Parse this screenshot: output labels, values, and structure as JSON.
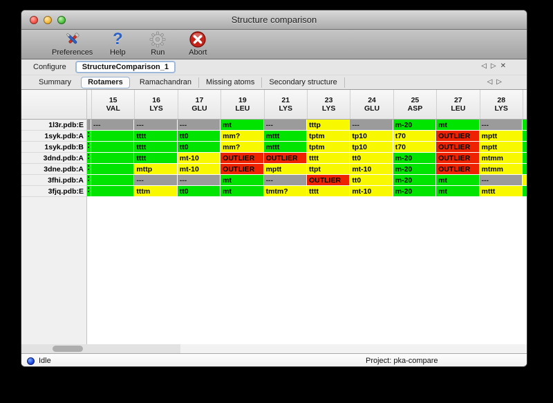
{
  "window": {
    "title": "Structure comparison"
  },
  "toolbar": {
    "buttons": [
      {
        "label": "Preferences",
        "icon": "tools-icon"
      },
      {
        "label": "Help",
        "icon": "help-icon",
        "glyph": "?"
      },
      {
        "label": "Run",
        "icon": "gear-icon"
      },
      {
        "label": "Abort",
        "icon": "abort-icon"
      }
    ]
  },
  "configure": {
    "label": "Configure",
    "value": "StructureComparison_1",
    "nav_prev": "◁",
    "nav_next": "▷",
    "close": "✕"
  },
  "tabs": {
    "items": [
      {
        "label": "Summary",
        "selected": false
      },
      {
        "label": "Rotamers",
        "selected": true
      },
      {
        "label": "Ramachandran",
        "selected": false
      },
      {
        "label": "Missing atoms",
        "selected": false
      },
      {
        "label": "Secondary structure",
        "selected": false
      }
    ],
    "nav_prev": "◁",
    "nav_next": "▷"
  },
  "colors": {
    "green": "#00e400",
    "yellow": "#f8f800",
    "red": "#ee2200",
    "gray": "#9b9b9b"
  },
  "table": {
    "columns": [
      {
        "num": "15",
        "res": "VAL"
      },
      {
        "num": "16",
        "res": "LYS"
      },
      {
        "num": "17",
        "res": "GLU"
      },
      {
        "num": "19",
        "res": "LEU"
      },
      {
        "num": "21",
        "res": "LYS"
      },
      {
        "num": "23",
        "res": "LYS"
      },
      {
        "num": "24",
        "res": "GLU"
      },
      {
        "num": "25",
        "res": "ASP"
      },
      {
        "num": "27",
        "res": "LEU"
      },
      {
        "num": "28",
        "res": "LYS"
      }
    ],
    "rows": [
      {
        "label": "1l3r.pdb:E",
        "left_clip": "gray",
        "right_clip": "green",
        "cells": [
          {
            "t": "---",
            "c": "gray"
          },
          {
            "t": "---",
            "c": "gray"
          },
          {
            "t": "---",
            "c": "gray"
          },
          {
            "t": "mt",
            "c": "green"
          },
          {
            "t": "---",
            "c": "gray"
          },
          {
            "t": "tttp",
            "c": "yellow"
          },
          {
            "t": "---",
            "c": "gray"
          },
          {
            "t": "m-20",
            "c": "green"
          },
          {
            "t": "mt",
            "c": "green"
          },
          {
            "t": "---",
            "c": "gray"
          }
        ]
      },
      {
        "label": "1syk.pdb:A",
        "left_clip": "green",
        "right_clip": "green",
        "cells": [
          {
            "t": "",
            "c": "green"
          },
          {
            "t": "tttt",
            "c": "green"
          },
          {
            "t": "tt0",
            "c": "green"
          },
          {
            "t": "mm?",
            "c": "yellow"
          },
          {
            "t": "mttt",
            "c": "green"
          },
          {
            "t": "tptm",
            "c": "yellow"
          },
          {
            "t": "tp10",
            "c": "yellow"
          },
          {
            "t": "t70",
            "c": "yellow"
          },
          {
            "t": "OUTLIER",
            "c": "red"
          },
          {
            "t": "mptt",
            "c": "yellow"
          }
        ]
      },
      {
        "label": "1syk.pdb:B",
        "left_clip": "green",
        "right_clip": "green",
        "cells": [
          {
            "t": "",
            "c": "green"
          },
          {
            "t": "tttt",
            "c": "green"
          },
          {
            "t": "tt0",
            "c": "green"
          },
          {
            "t": "mm?",
            "c": "yellow"
          },
          {
            "t": "mttt",
            "c": "green"
          },
          {
            "t": "tptm",
            "c": "yellow"
          },
          {
            "t": "tp10",
            "c": "yellow"
          },
          {
            "t": "t70",
            "c": "yellow"
          },
          {
            "t": "OUTLIER",
            "c": "red"
          },
          {
            "t": "mptt",
            "c": "yellow"
          }
        ]
      },
      {
        "label": "3dnd.pdb:A",
        "left_clip": "green",
        "right_clip": "green",
        "cells": [
          {
            "t": "",
            "c": "green"
          },
          {
            "t": "tttt",
            "c": "green"
          },
          {
            "t": "mt-10",
            "c": "yellow"
          },
          {
            "t": "OUTLIER",
            "c": "red"
          },
          {
            "t": "OUTLIER",
            "c": "red"
          },
          {
            "t": "tttt",
            "c": "yellow"
          },
          {
            "t": "tt0",
            "c": "yellow"
          },
          {
            "t": "m-20",
            "c": "green"
          },
          {
            "t": "OUTLIER",
            "c": "red"
          },
          {
            "t": "mtmm",
            "c": "yellow"
          }
        ]
      },
      {
        "label": "3dne.pdb:A",
        "left_clip": "green",
        "right_clip": "green",
        "cells": [
          {
            "t": "",
            "c": "green"
          },
          {
            "t": "mttp",
            "c": "yellow"
          },
          {
            "t": "mt-10",
            "c": "yellow"
          },
          {
            "t": "OUTLIER",
            "c": "red"
          },
          {
            "t": "mptt",
            "c": "yellow"
          },
          {
            "t": "ttpt",
            "c": "yellow"
          },
          {
            "t": "mt-10",
            "c": "yellow"
          },
          {
            "t": "m-20",
            "c": "green"
          },
          {
            "t": "OUTLIER",
            "c": "red"
          },
          {
            "t": "mtmm",
            "c": "yellow"
          }
        ]
      },
      {
        "label": "3fhi.pdb:A",
        "left_clip": "green",
        "right_clip": "yellow",
        "cells": [
          {
            "t": "",
            "c": "green"
          },
          {
            "t": "---",
            "c": "gray"
          },
          {
            "t": "---",
            "c": "gray"
          },
          {
            "t": "mt",
            "c": "green"
          },
          {
            "t": "---",
            "c": "gray"
          },
          {
            "t": "OUTLIER",
            "c": "red"
          },
          {
            "t": "tt0",
            "c": "yellow"
          },
          {
            "t": "m-20",
            "c": "green"
          },
          {
            "t": "mt",
            "c": "green"
          },
          {
            "t": "---",
            "c": "gray"
          }
        ]
      },
      {
        "label": "3fjq.pdb:E",
        "left_clip": "green",
        "right_clip": "green",
        "cells": [
          {
            "t": "",
            "c": "green"
          },
          {
            "t": "tttm",
            "c": "yellow"
          },
          {
            "t": "tt0",
            "c": "green"
          },
          {
            "t": "mt",
            "c": "green"
          },
          {
            "t": "tmtm?",
            "c": "yellow"
          },
          {
            "t": "tttt",
            "c": "yellow"
          },
          {
            "t": "mt-10",
            "c": "yellow"
          },
          {
            "t": "m-20",
            "c": "green"
          },
          {
            "t": "mt",
            "c": "green"
          },
          {
            "t": "mttt",
            "c": "yellow"
          }
        ]
      }
    ]
  },
  "status": {
    "state": "Idle",
    "project": "Project: pka-compare"
  }
}
